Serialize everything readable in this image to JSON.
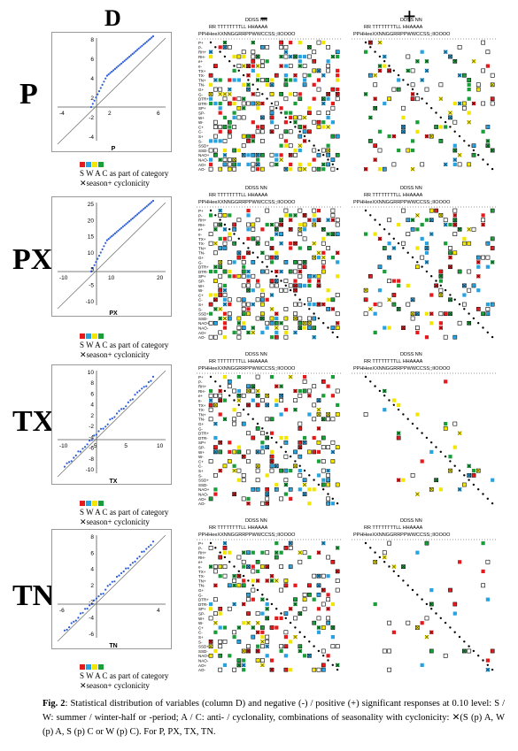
{
  "columns": {
    "d": "D",
    "minus": "-",
    "plus": "+"
  },
  "rows": [
    {
      "label": "P",
      "xlabel": "P",
      "xticks": [
        "-4",
        "2",
        "6"
      ],
      "yticks": [
        "8",
        "6",
        "4",
        "2",
        "-2",
        "-4"
      ]
    },
    {
      "label": "PX",
      "xlabel": "PX",
      "xticks": [
        "-10",
        "10",
        "20"
      ],
      "yticks": [
        "25",
        "20",
        "15",
        "10",
        "5",
        "-5",
        "-10"
      ]
    },
    {
      "label": "TX",
      "xlabel": "TX",
      "xticks": [
        "-10",
        "-5",
        "5",
        "10"
      ],
      "yticks": [
        "10",
        "8",
        "6",
        "4",
        "2",
        "-2",
        "-4",
        "-6",
        "-8",
        "-10"
      ]
    },
    {
      "label": "TN",
      "xlabel": "TN",
      "xticks": [
        "-6",
        "4"
      ],
      "yticks": [
        "8",
        "6",
        "4",
        "2",
        "-2",
        "-4",
        "-6"
      ]
    }
  ],
  "legend": {
    "letters": "S W A C",
    "category": "as part of category",
    "cyclonicity": "season+ cyclonicity",
    "cross": "✕",
    "colors": {
      "S": "#e41a1c",
      "W": "#29a3e0",
      "A": "#f2e600",
      "C": "#1a9e3a"
    }
  },
  "matrix_headers": {
    "top1_minus": "DDSS        NN",
    "top2_minus": "RR   TTTTTTTTLL     HHAAAA",
    "top3_minus": "PPHHeeXXNNGGRRPPWWCCSS;;IIOOOO",
    "top1_plus": "DDSS        NN",
    "top2_plus": "RR   TTTTTTTTLL     HHAAAA",
    "top3_plus": "PPHHeeXXNNGGRRPPWWCCSS;;IIOOOO"
  },
  "row_var_labels": [
    "P+",
    "P-",
    "RH+",
    "RH-",
    "e+",
    "e-",
    "TX+",
    "TX-",
    "TN+",
    "TN-",
    "G+",
    "G-",
    "DTR+",
    "DTR-",
    "SP+",
    "SP-",
    "W+",
    "W-",
    "C+",
    "C-",
    "S+",
    "S-",
    "SSD+",
    "SSD-",
    "NAO+",
    "NAO-",
    "AO+",
    "AO-"
  ],
  "caption": {
    "fig": "Fig. 2",
    "text": ": Statistical distribution of variables (column D) and negative (-) / positive (+) significant responses at 0.10 level: S / W: summer / winter-half or -period; A / C: anti- / cyclonality, combinations of seasonality with cyclonicity: ✕(S (p) A, W (p) A, S (p) C or W (p) C). For P, PX, TX, TN."
  }
}
